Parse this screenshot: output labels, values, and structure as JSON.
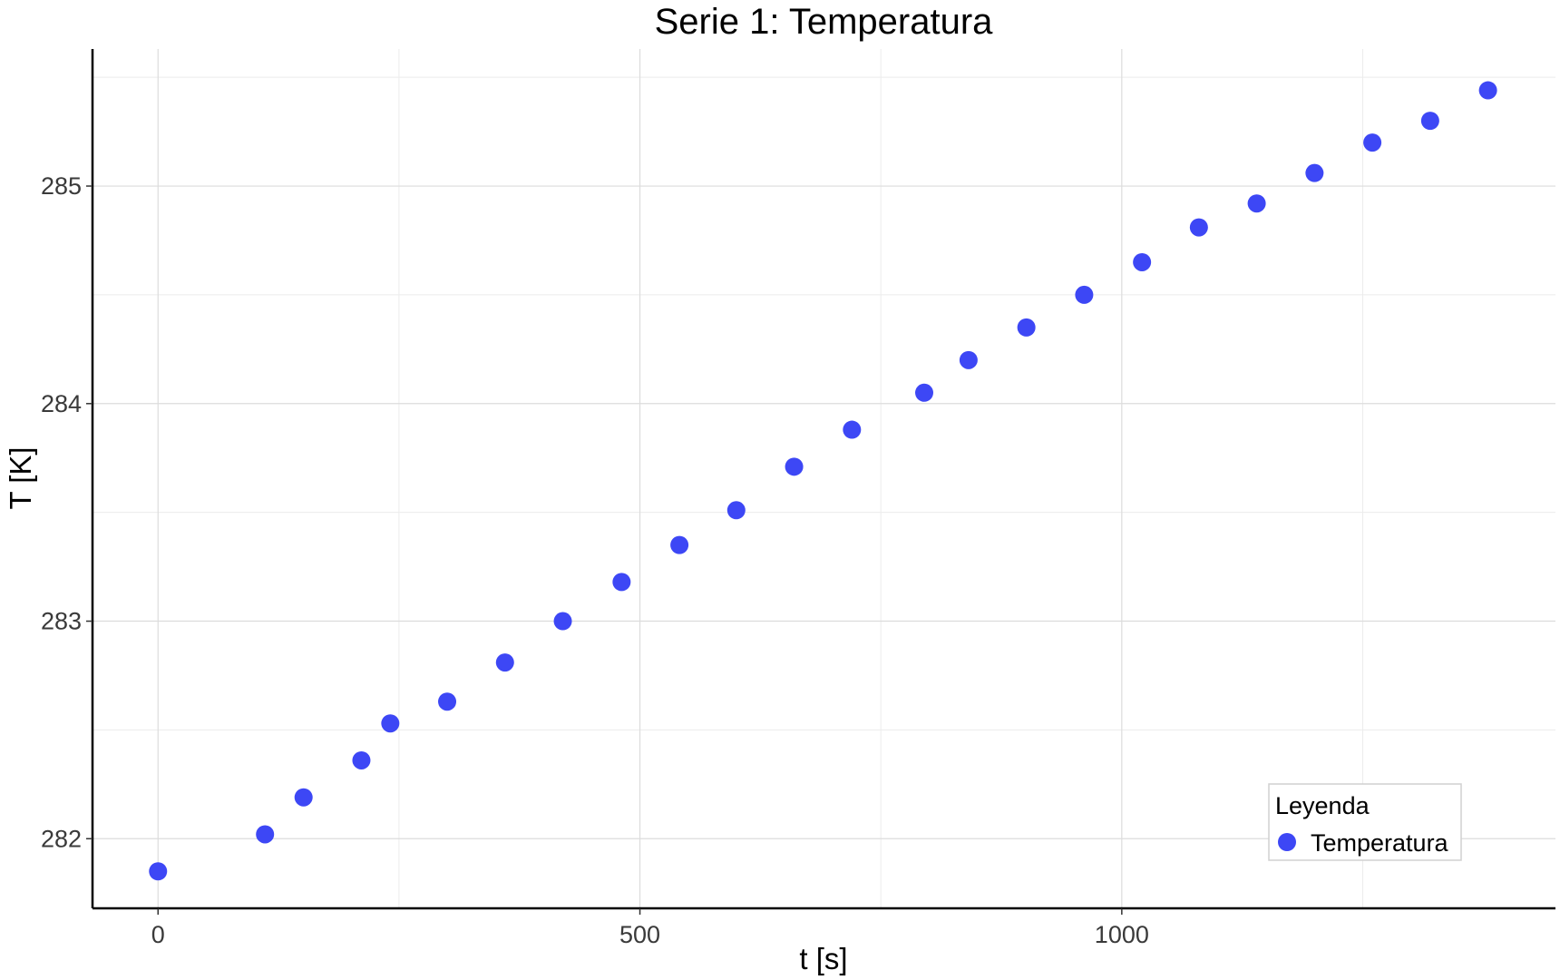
{
  "chart_data": {
    "type": "scatter",
    "title": "Serie 1: Temperatura",
    "xlabel": "t [s]",
    "ylabel": "T [K]",
    "xlim": [
      -68,
      1450
    ],
    "ylim": [
      281.68,
      285.63
    ],
    "x_ticks": [
      0,
      500,
      1000
    ],
    "y_ticks": [
      282,
      283,
      284,
      285
    ],
    "grid": true,
    "legend": {
      "title": "Leyenda",
      "placement": "bottom-right"
    },
    "series": [
      {
        "name": "Temperatura",
        "color": "#3d47f5",
        "x": [
          0,
          111,
          151,
          211,
          241,
          300,
          360,
          420,
          481,
          541,
          600,
          660,
          720,
          795,
          841,
          901,
          961,
          1021,
          1080,
          1140,
          1200,
          1260,
          1320,
          1380
        ],
        "y": [
          281.85,
          282.02,
          282.19,
          282.36,
          282.53,
          282.63,
          282.81,
          283.0,
          283.18,
          283.35,
          283.51,
          283.71,
          283.88,
          284.05,
          284.2,
          284.35,
          284.5,
          284.65,
          284.81,
          284.92,
          285.06,
          285.2,
          285.3,
          285.44
        ]
      }
    ]
  }
}
